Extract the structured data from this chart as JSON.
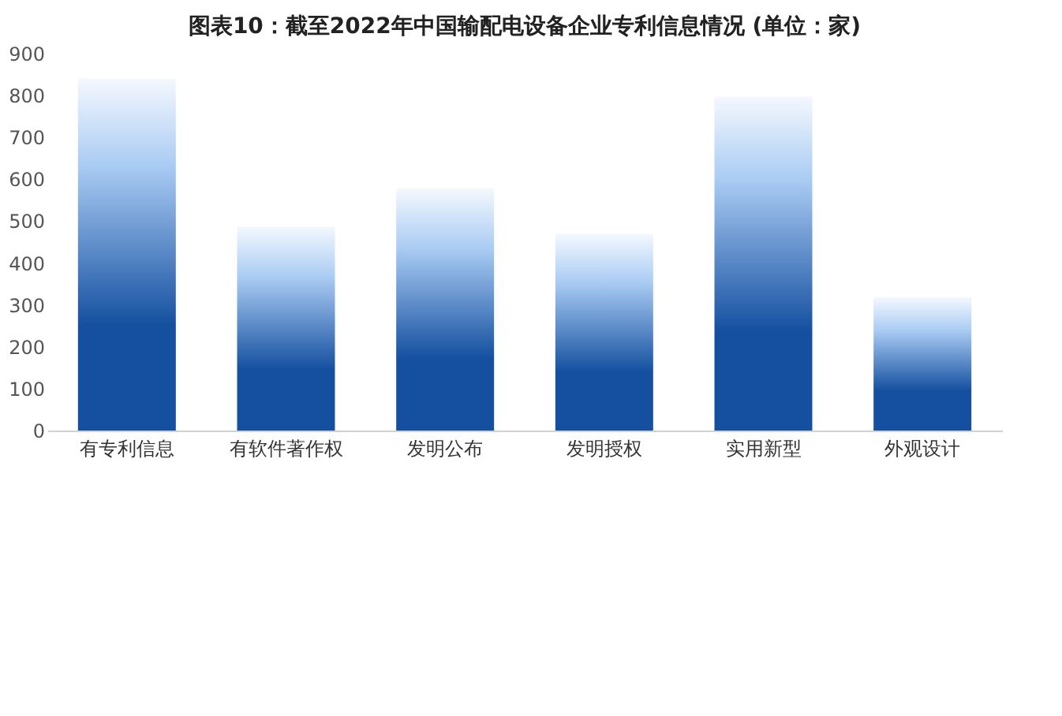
{
  "chart_data": {
    "type": "bar",
    "title": "图表10：截至2022年中国输配电设备企业专利信息情况 (单位：家)",
    "categories": [
      "有专利信息",
      "有软件著作权",
      "发明公布",
      "发明授权",
      "实用新型",
      "外观设计"
    ],
    "values": [
      840,
      487,
      578,
      470,
      797,
      318
    ],
    "color": "#1550a0",
    "ylim": [
      0,
      900
    ],
    "yticks": [
      0,
      100,
      200,
      300,
      400,
      500,
      600,
      700,
      800,
      900
    ],
    "grid": false
  }
}
